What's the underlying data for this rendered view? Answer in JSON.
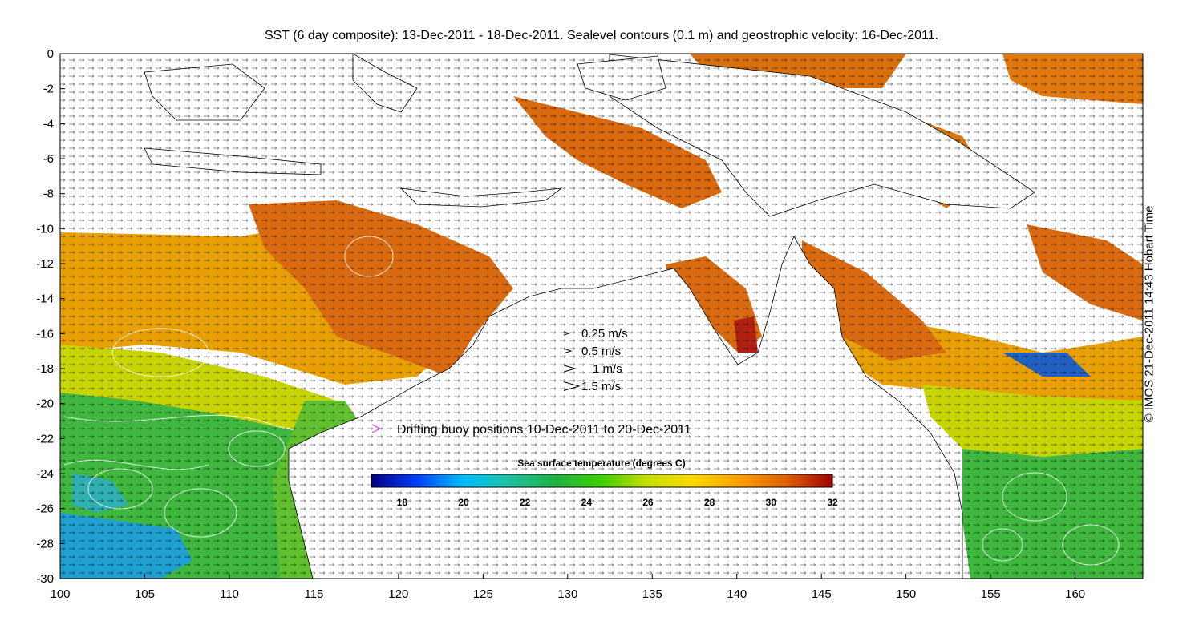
{
  "title": "SST (6 day composite): 13-Dec-2011 - 18-Dec-2011. Sealevel contours (0.1 m) and geostrophic velocity: 16-Dec-2011.",
  "credit": "© IMOS 21-Dec-2011 14:43 Hobart Time",
  "axes": {
    "x_ticks": [
      "100",
      "105",
      "110",
      "115",
      "120",
      "125",
      "130",
      "135",
      "140",
      "145",
      "150",
      "155",
      "160"
    ],
    "y_ticks": [
      "0",
      "-2",
      "-4",
      "-6",
      "-8",
      "-10",
      "-12",
      "-14",
      "-16",
      "-18",
      "-20",
      "-22",
      "-24",
      "-26",
      "-28",
      "-30"
    ],
    "lon_range": [
      100,
      164
    ],
    "lat_range": [
      -30,
      0
    ]
  },
  "velocity_legend": [
    {
      "label": "0.25 m/s",
      "speed": 0.25
    },
    {
      "label": "0.5 m/s",
      "speed": 0.5
    },
    {
      "label": "1 m/s",
      "speed": 1
    },
    {
      "label": "1.5 m/s",
      "speed": 1.5
    }
  ],
  "buoy_legend": {
    "label": "Drifting buoy positions 10-Dec-2011 to 20-Dec-2011",
    "color": "#e040e0"
  },
  "colorbar": {
    "title": "Sea surface temperature (degrees C)",
    "min": 17,
    "max": 32,
    "ticks": [
      "18",
      "20",
      "22",
      "24",
      "26",
      "28",
      "30",
      "32"
    ],
    "stops": [
      "#00007f",
      "#0040ff",
      "#00c0ff",
      "#20c0a0",
      "#20b040",
      "#40d000",
      "#c8e000",
      "#ffd800",
      "#ffa000",
      "#e06000",
      "#a00000"
    ]
  },
  "colors": {
    "land": "#ffffff",
    "sst_warm": "#d96a10",
    "sst_mid": "#e8a000",
    "sst_cool": "#40b840",
    "sst_cold": "#20a0d0",
    "contour": "#ffffff",
    "coast": "#000000"
  }
}
